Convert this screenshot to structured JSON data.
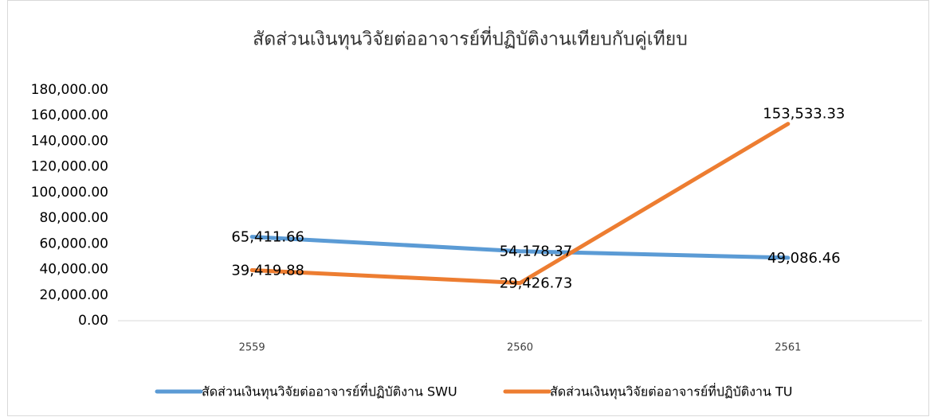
{
  "chart_data": {
    "type": "line",
    "title": "สัดส่วนเงินทุนวิจัยต่ออาจารย์ที่ปฏิบัติงานเทียบกับคู่เทียบ",
    "categories": [
      "2559",
      "2560",
      "2561"
    ],
    "series": [
      {
        "name": "สัดส่วนเงินทุนวิจัยต่ออาจารย์ที่ปฏิบัติงาน SWU",
        "color": "#5b9bd5",
        "values": [
          65411.66,
          54178.37,
          49086.46
        ],
        "value_labels": [
          "65,411.66",
          "54,178.37",
          "49,086.46"
        ]
      },
      {
        "name": "สัดส่วนเงินทุนวิจัยต่ออาจารย์ที่ปฏิบัติงาน TU",
        "color": "#ed7d31",
        "values": [
          39419.88,
          29426.73,
          153533.33
        ],
        "value_labels": [
          "39,419.88",
          "29,426.73",
          "153,533.33"
        ]
      }
    ],
    "ylim": [
      0,
      180000
    ],
    "yticks": [
      {
        "value": 0,
        "label": "0.00"
      },
      {
        "value": 20000,
        "label": "20,000.00"
      },
      {
        "value": 40000,
        "label": "40,000.00"
      },
      {
        "value": 60000,
        "label": "60,000.00"
      },
      {
        "value": 80000,
        "label": "80,000.00"
      },
      {
        "value": 100000,
        "label": "100,000.00"
      },
      {
        "value": 120000,
        "label": "120,000.00"
      },
      {
        "value": 140000,
        "label": "140,000.00"
      },
      {
        "value": 160000,
        "label": "160,000.00"
      },
      {
        "value": 180000,
        "label": "180,000.00"
      }
    ],
    "grid": false,
    "legend": "bottom"
  }
}
